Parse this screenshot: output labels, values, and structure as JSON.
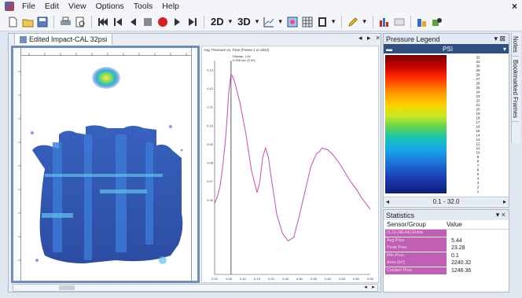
{
  "menu": {
    "items": [
      "File",
      "Edit",
      "View",
      "Options",
      "Tools",
      "Help"
    ],
    "close": "×"
  },
  "toolbar": {
    "buttons": [
      "new-file-icon",
      "open-folder-icon",
      "save-icon",
      "print-icon",
      "print-preview-icon",
      "first-frame-icon",
      "previous-frame-icon",
      "play-reverse-icon",
      "stop-icon",
      "record-icon",
      "play-icon",
      "last-frame-icon",
      "view-2d-icon",
      "view-3d-icon",
      "graph-icon",
      "contour-icon",
      "grid-icon",
      "frame-select-icon",
      "highlighter-icon",
      "bar-chart-icon",
      "legend-icon",
      "export-icon",
      "settings-icon"
    ],
    "view_2d": "2D",
    "view_3d": "3D",
    "caret": "▾"
  },
  "document": {
    "tab_title": "Edited Impact-CAL 32psi",
    "tab_controls": "◂ ▸ ×"
  },
  "pressure_chart": {
    "title": "Avg. Pressure vs. Time (Frame 1 to 1642)",
    "marker_label": "Display: 1.61",
    "marker_sub": "0.058 sec (0.00)"
  },
  "chart_data": {
    "type": "line",
    "title": "Avg. Pressure vs. Time (Frame 1 to 1642)",
    "xlabel": "",
    "ylabel": "",
    "x_ticks": [
      "0.00",
      "0.05",
      "0.10",
      "0.15",
      "0.20",
      "0.25",
      "0.30",
      "0.35",
      "0.40",
      "0.45",
      "0.50",
      "0.55"
    ],
    "y_ticks": [
      "0.06",
      "0.07",
      "0.08",
      "0.09",
      "0.10",
      "0.11",
      "0.12",
      "0.13"
    ],
    "xlim": [
      0,
      0.55
    ],
    "ylim": [
      0.02,
      0.135
    ],
    "marker_x": 0.058,
    "series": [
      {
        "color": "#c14fb0",
        "x": [
          0.0,
          0.01,
          0.02,
          0.03,
          0.04,
          0.05,
          0.058,
          0.07,
          0.09,
          0.11,
          0.13,
          0.15,
          0.16,
          0.17,
          0.18,
          0.19,
          0.2,
          0.22,
          0.24,
          0.26,
          0.28,
          0.3,
          0.32,
          0.34,
          0.36,
          0.37,
          0.38,
          0.4,
          0.42,
          0.44,
          0.46,
          0.48,
          0.5,
          0.52,
          0.54,
          0.55
        ],
        "y": [
          0.058,
          0.062,
          0.068,
          0.08,
          0.095,
          0.118,
          0.128,
          0.124,
          0.112,
          0.096,
          0.076,
          0.064,
          0.07,
          0.083,
          0.088,
          0.083,
          0.072,
          0.052,
          0.042,
          0.038,
          0.04,
          0.052,
          0.065,
          0.078,
          0.085,
          0.086,
          0.088,
          0.087,
          0.084,
          0.08,
          0.075,
          0.07,
          0.066,
          0.061,
          0.057,
          0.055
        ]
      }
    ]
  },
  "legend": {
    "title": "Pressure Legend",
    "pin": "▾ ⊠",
    "unit": "PSI",
    "footer": "0.1 - 32.0",
    "values": [
      "32",
      "31",
      "30",
      "29",
      "28",
      "27",
      "26",
      "25",
      "24",
      "23",
      "22",
      "21",
      "20",
      "19",
      "18",
      "17",
      "16",
      "15",
      "14",
      "13",
      "12",
      "11",
      "10",
      "9",
      "8",
      "7",
      "6",
      "5",
      "4",
      "3",
      "2",
      "1"
    ]
  },
  "statistics": {
    "title": "Statistics",
    "pin": "▾ ×",
    "headers": [
      "Sensor/Group",
      "Value"
    ],
    "rows": [
      {
        "name": "(1,1)-(48,44) Entire",
        "value": ""
      },
      {
        "name": "Avg Pres",
        "value": "5.44"
      },
      {
        "name": "Peak Pres",
        "value": "23.28"
      },
      {
        "name": "Min Pres",
        "value": "0.1"
      },
      {
        "name": "Area (in²)",
        "value": "2240.32"
      },
      {
        "name": "Contact Pres",
        "value": "1246.36"
      }
    ]
  },
  "side_tabs": [
    "Notes",
    "Bookmarked Frames"
  ]
}
